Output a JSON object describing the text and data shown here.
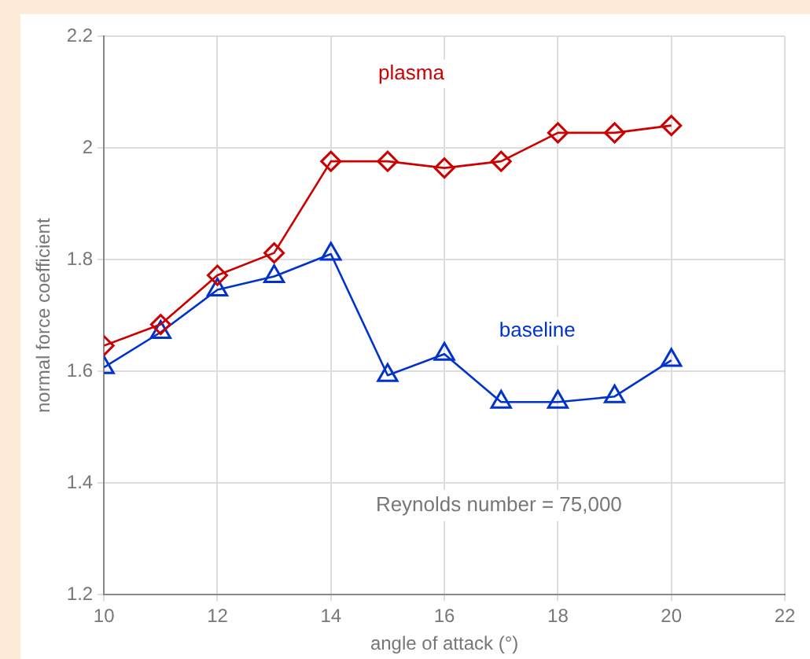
{
  "chart_data": {
    "type": "line",
    "xlabel": "angle of attack (°)",
    "ylabel": "normal force coefficient",
    "annotations": [
      "Reynolds number = 75,000"
    ],
    "x": [
      10,
      11,
      12,
      13,
      14,
      15,
      16,
      17,
      18,
      19,
      20
    ],
    "series": [
      {
        "name": "plasma",
        "color": "#cc0000",
        "marker": "diamond",
        "values": [
          1.646,
          1.684,
          1.772,
          1.812,
          1.976,
          1.976,
          1.964,
          1.976,
          2.027,
          2.027,
          2.04
        ]
      },
      {
        "name": "baseline",
        "color": "#0033cc",
        "marker": "triangle",
        "values": [
          1.607,
          1.67,
          1.746,
          1.77,
          1.81,
          1.593,
          1.631,
          1.545,
          1.545,
          1.555,
          1.62
        ]
      }
    ],
    "xlim": [
      10,
      22
    ],
    "xticks": [
      10,
      12,
      14,
      16,
      18,
      20,
      22
    ],
    "ylim": [
      1.2,
      2.2
    ],
    "yticks": [
      1.2,
      1.4,
      1.6,
      1.8,
      2,
      2.2
    ],
    "grid": true,
    "legend": false,
    "line_style": "solid"
  }
}
